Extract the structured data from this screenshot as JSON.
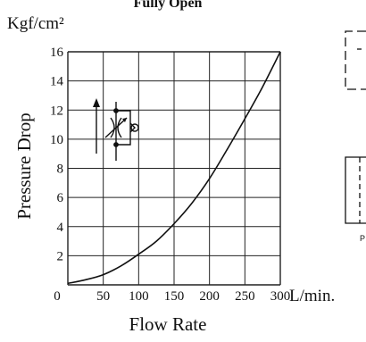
{
  "chart_data": {
    "type": "line",
    "title": "Fully Open",
    "ylabel": "Pressure Drop",
    "yunit": "Kgf/cm²",
    "xlabel": "Flow Rate",
    "xunit": "L/min.",
    "xlim": [
      0,
      300
    ],
    "ylim": [
      0,
      16
    ],
    "x_ticks": [
      0,
      50,
      100,
      150,
      200,
      250,
      300
    ],
    "y_ticks": [
      2,
      4,
      6,
      8,
      10,
      12,
      14,
      16
    ],
    "origin_label": "0",
    "grid": true,
    "series": [
      {
        "x": [
          0,
          25,
          50,
          75,
          100,
          125,
          150,
          175,
          200,
          225,
          250,
          275,
          300
        ],
        "y": [
          0.1,
          0.35,
          0.7,
          1.3,
          2.1,
          3.0,
          4.2,
          5.6,
          7.3,
          9.3,
          11.4,
          13.6,
          16.0
        ]
      }
    ]
  },
  "side_diagram": {
    "port_label": "P"
  },
  "colors": {
    "line": "#111111",
    "grid": "#222222",
    "background": "#ffffff"
  }
}
